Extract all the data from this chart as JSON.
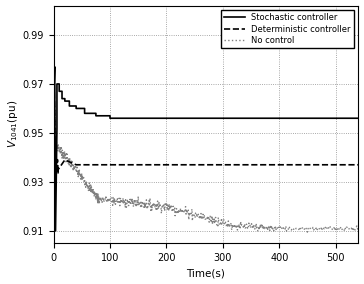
{
  "xlabel": "Time(s)",
  "ylabel": "V_{1041}(pu)",
  "xlim": [
    0,
    540
  ],
  "ylim": [
    0.905,
    1.002
  ],
  "yticks": [
    0.91,
    0.93,
    0.95,
    0.97,
    0.99
  ],
  "xticks": [
    0,
    100,
    200,
    300,
    400,
    500
  ],
  "background_color": "#ffffff",
  "legend": [
    "Stochastic controller",
    "Deterministic controller",
    "No control"
  ],
  "stoch_final": 0.956,
  "det_final": 0.937,
  "noctl_final": 0.911
}
